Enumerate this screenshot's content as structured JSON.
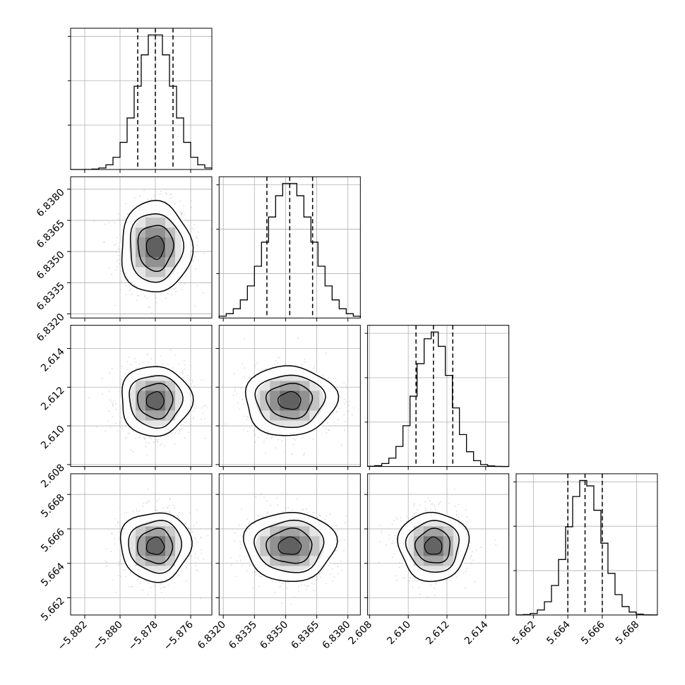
{
  "chart_data": {
    "type": "corner",
    "parameters": [
      {
        "range": [
          -5.8828,
          -5.8748
        ],
        "ticks": [
          -5.882,
          -5.88,
          -5.878,
          -5.876
        ],
        "tick_labels": [
          "−5.882",
          "−5.880",
          "−5.878",
          "−5.876"
        ],
        "quantiles": [
          -5.879,
          -5.878,
          -5.877
        ],
        "mean": -5.878,
        "sd": 0.001
      },
      {
        "range": [
          6.8318,
          6.8386
        ],
        "ticks": [
          6.832,
          6.8335,
          6.835,
          6.8365,
          6.838
        ],
        "tick_labels": [
          "6.8320",
          "6.8335",
          "6.8350",
          "6.8365",
          "6.8380"
        ],
        "quantiles": [
          6.8341,
          6.8352,
          6.8363
        ],
        "mean": 6.8352,
        "sd": 0.0011
      },
      {
        "range": [
          2.6079,
          2.6152
        ],
        "ticks": [
          2.608,
          2.61,
          2.612,
          2.614
        ],
        "tick_labels": [
          "2.608",
          "2.610",
          "2.612",
          "2.614"
        ],
        "quantiles": [
          2.6104,
          2.6113,
          2.6123
        ],
        "mean": 2.6113,
        "sd": 0.0009
      },
      {
        "range": [
          5.661,
          5.6692
        ],
        "ticks": [
          5.662,
          5.664,
          5.666,
          5.668
        ],
        "tick_labels": [
          "5.662",
          "5.664",
          "5.666",
          "5.668"
        ],
        "quantiles": [
          5.664,
          5.665,
          5.666
        ],
        "mean": 5.665,
        "sd": 0.001
      }
    ],
    "histogram_bins": 20,
    "density_levels": [
      0.118,
      0.393,
      0.675,
      0.865
    ],
    "grid": true,
    "quantile_lines": "dashed",
    "colors": {
      "axis": "#000000",
      "grid": "#b0b0b0",
      "hist": "#000000",
      "points": "#bdbdbd",
      "density": "#3c3c3c"
    }
  }
}
